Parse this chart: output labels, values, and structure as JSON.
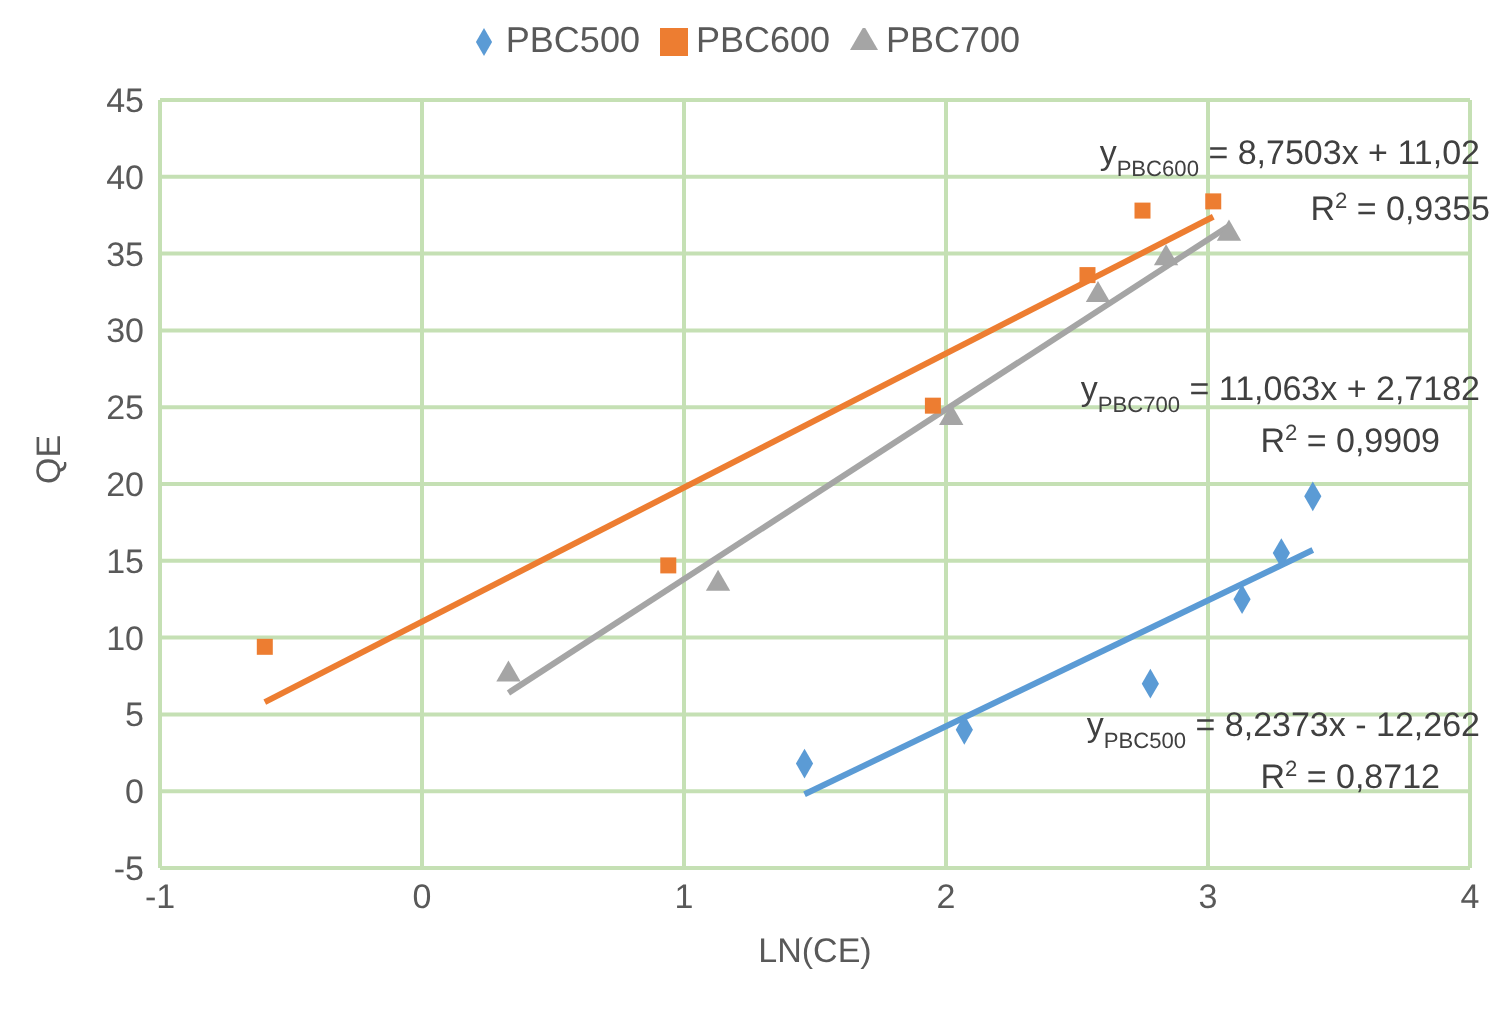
{
  "chart_data": {
    "type": "scatter",
    "xlabel": "LN(CE)",
    "ylabel": "QE",
    "xlim": [
      -1,
      4
    ],
    "xticks": [
      -1,
      0,
      1,
      2,
      3,
      4
    ],
    "ylim": [
      -5,
      45
    ],
    "yticks": [
      -5,
      0,
      5,
      10,
      15,
      20,
      25,
      30,
      35,
      40,
      45
    ],
    "grid": true,
    "legend": "top",
    "series": [
      {
        "name": "PBC500",
        "color": "#5b9bd5",
        "marker": "diamond",
        "x": [
          1.46,
          2.07,
          2.78,
          3.13,
          3.28,
          3.4
        ],
        "values": [
          1.8,
          4.0,
          7.0,
          12.5,
          15.5,
          19.2
        ]
      },
      {
        "name": "PBC600",
        "color": "#ed7d31",
        "marker": "square",
        "x": [
          -0.6,
          0.94,
          1.95,
          2.54,
          2.75,
          3.02
        ],
        "values": [
          9.4,
          14.7,
          25.1,
          33.6,
          37.8,
          38.4
        ]
      },
      {
        "name": "PBC700",
        "color": "#a5a5a5",
        "marker": "triangle",
        "x": [
          0.33,
          1.13,
          2.02,
          2.58,
          2.84,
          3.08
        ],
        "values": [
          7.6,
          13.5,
          24.3,
          32.3,
          34.7,
          36.3
        ]
      },
      {
        "type": "line",
        "color": "#5b9bd5",
        "marker": "none",
        "x": [
          1.46,
          3.4
        ],
        "values": [
          -0.2,
          15.7
        ]
      },
      {
        "type": "line",
        "color": "#ed7d31",
        "marker": "none",
        "x": [
          -0.6,
          3.02
        ],
        "values": [
          5.8,
          37.4
        ]
      },
      {
        "type": "line",
        "color": "#a5a5a5",
        "marker": "none",
        "x": [
          0.33,
          3.08
        ],
        "values": [
          6.4,
          36.8
        ]
      }
    ],
    "annotations": [
      "y$_{PBC600}$ = 8,7503x + 11,02",
      "R$^{2}$ = 0,9355",
      "y$_{PBC700}$ = 11,063x + 2,7182",
      "R$^{2}$ = 0,9909",
      "y$_{PBC500}$ = 8,2373x - 12,262",
      "R$^{2}$ = 0,8712"
    ]
  }
}
